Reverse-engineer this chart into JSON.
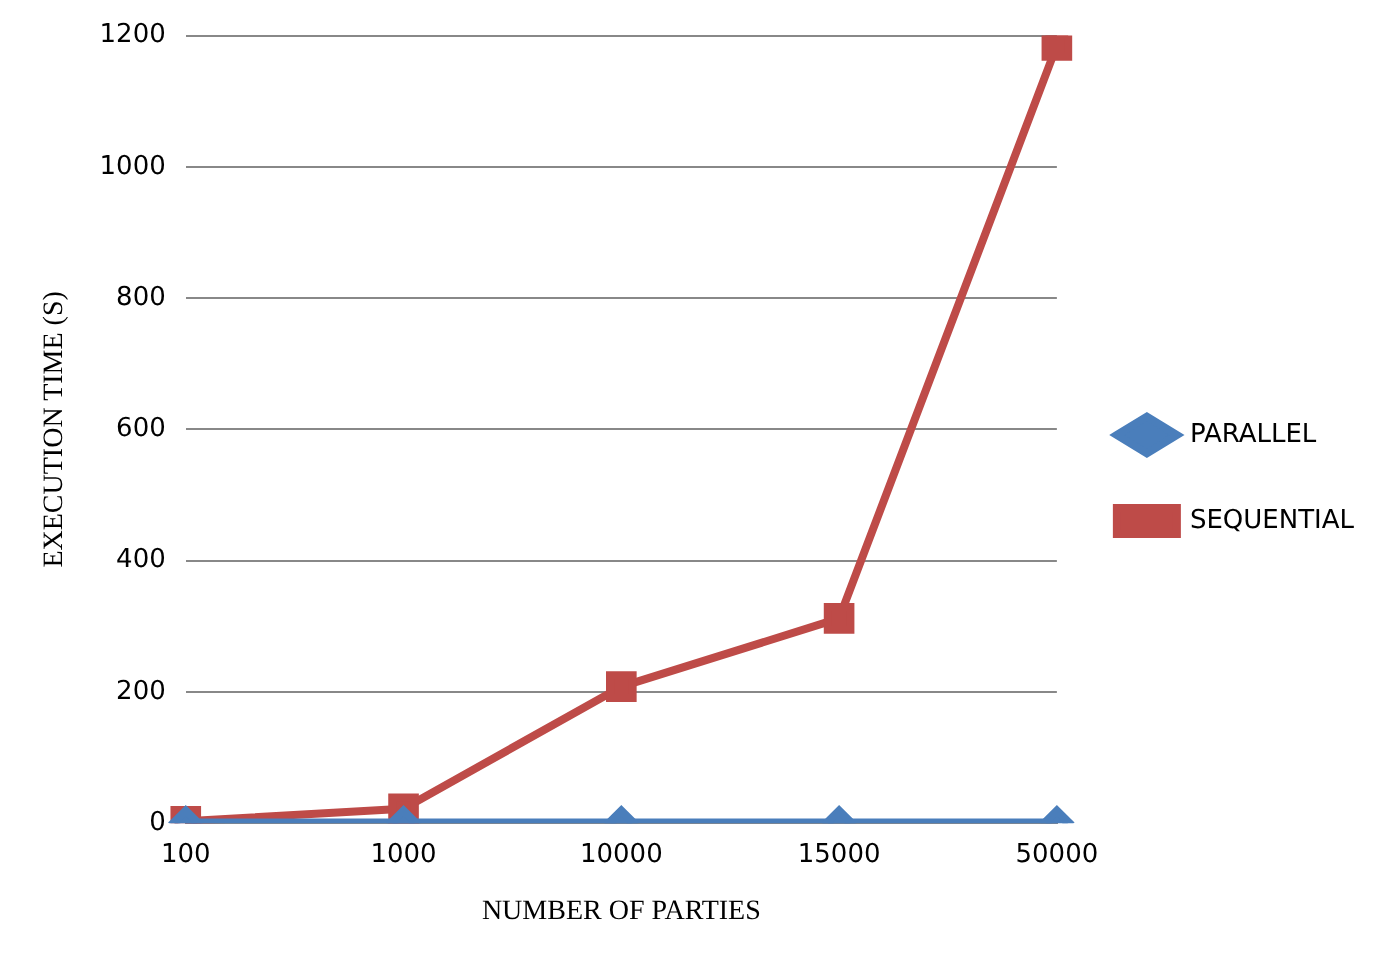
{
  "chart_data": {
    "type": "line",
    "xlabel": "NUMBER OF PARTIES",
    "ylabel": "EXECUTION TIME (S)",
    "categories": [
      "100",
      "1000",
      "10000",
      "15000",
      "50000"
    ],
    "series": [
      {
        "name": "PARALLEL",
        "color": "#4a7ebb",
        "values": [
          1,
          1,
          1,
          1,
          1
        ],
        "marker": "diamond"
      },
      {
        "name": "SEQUENTIAL",
        "color": "#be4b48",
        "values": [
          3,
          22,
          208,
          312,
          1185
        ],
        "marker": "square"
      }
    ],
    "ylim": [
      0,
      1200
    ],
    "yticks": [
      0,
      200,
      400,
      600,
      800,
      1000,
      1200
    ],
    "grid": "y",
    "legend": "right",
    "line_style": "solid"
  }
}
